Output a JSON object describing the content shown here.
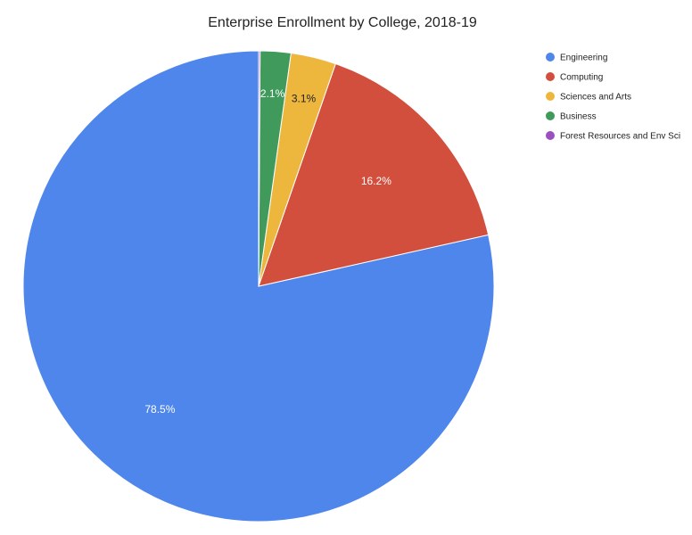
{
  "chart_data": {
    "type": "pie",
    "title": "Enterprise Enrollment by College, 2018-19",
    "legend_position": "right",
    "slices": [
      {
        "label": "Engineering",
        "value": 78.5,
        "display": "78.5%",
        "color": "#4f86ec",
        "label_color": "#ffffff"
      },
      {
        "label": "Computing",
        "value": 16.2,
        "display": "16.2%",
        "color": "#d24f3e",
        "label_color": "#ffffff"
      },
      {
        "label": "Sciences and Arts",
        "value": 3.1,
        "display": "3.1%",
        "color": "#edb73e",
        "label_color": "#222222"
      },
      {
        "label": "Business",
        "value": 2.1,
        "display": "2.1%",
        "color": "#3f9a5c",
        "label_color": "#ffffff"
      },
      {
        "label": "Forest Resources and Env Sci",
        "value": 0.1,
        "display": "",
        "color": "#9c4fbf",
        "label_color": "#ffffff"
      }
    ]
  }
}
